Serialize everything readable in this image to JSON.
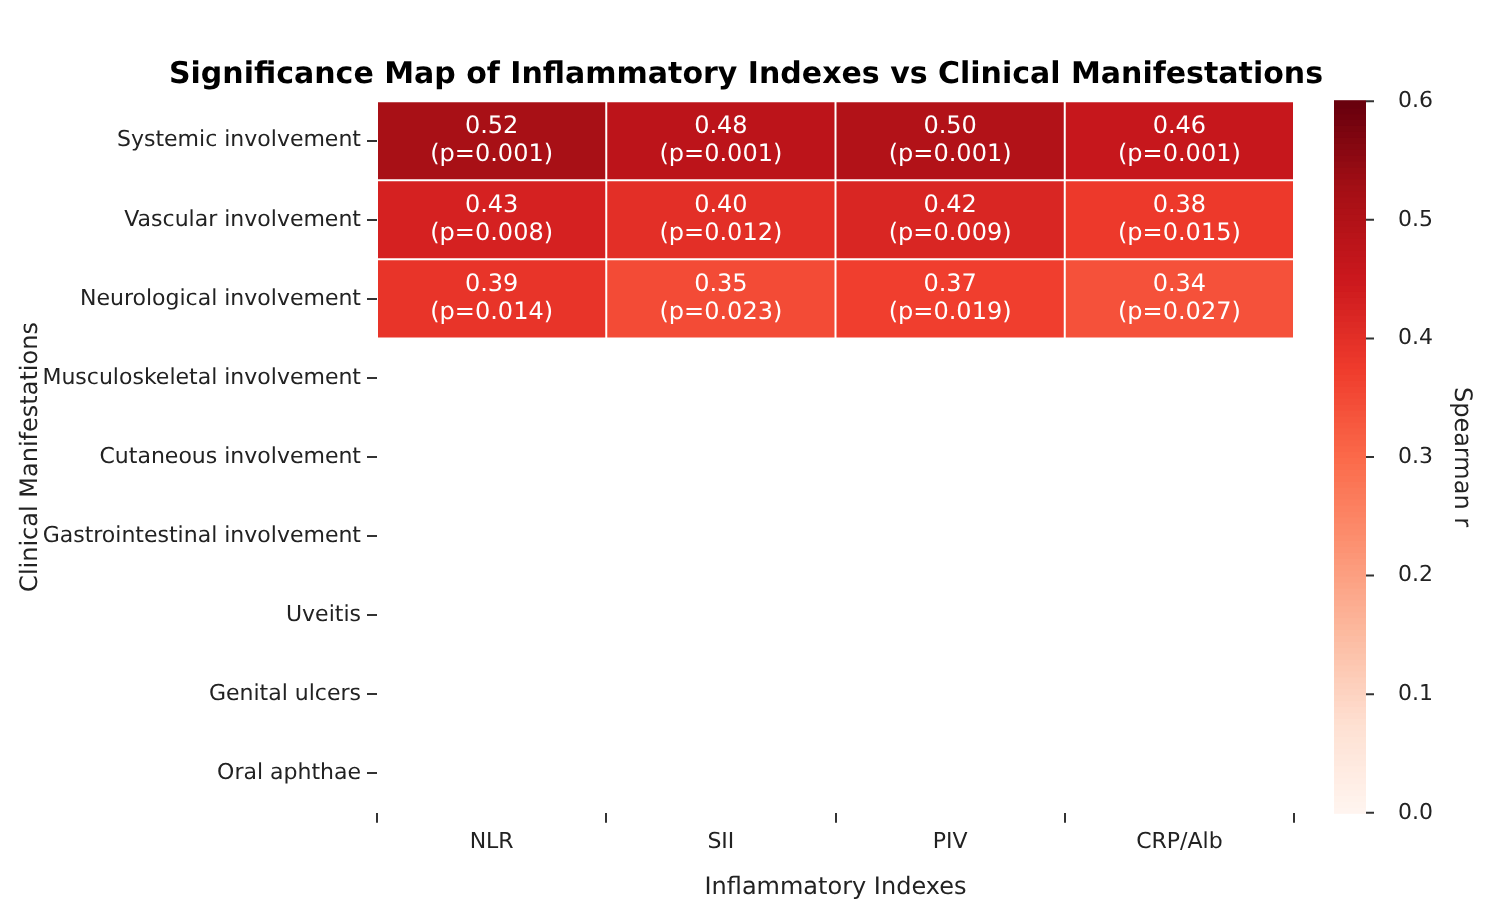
{
  "chart_data": {
    "type": "heatmap",
    "title": "Significance Map of Inflammatory Indexes vs Clinical Manifestations",
    "xlabel": "Inflammatory Indexes",
    "ylabel": "Clinical Manifestations",
    "clabel": "Spearman r",
    "categories": [
      "NLR",
      "SII",
      "PIV",
      "CRP/Alb"
    ],
    "y_categories": [
      "Systemic involvement",
      "Vascular involvement",
      "Neurological involvement",
      "Musculoskeletal involvement",
      "Cutaneous involvement",
      "Gastrointestinal involvement",
      "Uveitis",
      "Genital ulcers",
      "Oral aphthae"
    ],
    "cells": [
      [
        0.52,
        0.48,
        0.5,
        0.46
      ],
      [
        0.43,
        0.4,
        0.42,
        0.38
      ],
      [
        0.39,
        0.35,
        0.37,
        0.34
      ],
      [
        null,
        null,
        null,
        null
      ],
      [
        null,
        null,
        null,
        null
      ],
      [
        null,
        null,
        null,
        null
      ],
      [
        null,
        null,
        null,
        null
      ],
      [
        null,
        null,
        null,
        null
      ],
      [
        null,
        null,
        null,
        null
      ]
    ],
    "cell_labels": [
      [
        "0.52\n(p=0.001)",
        "0.48\n(p=0.001)",
        "0.50\n(p=0.001)",
        "0.46\n(p=0.001)"
      ],
      [
        "0.43\n(p=0.008)",
        "0.40\n(p=0.012)",
        "0.42\n(p=0.009)",
        "0.38\n(p=0.015)"
      ],
      [
        "0.39\n(p=0.014)",
        "0.35\n(p=0.023)",
        "0.37\n(p=0.019)",
        "0.34\n(p=0.027)"
      ],
      [
        null,
        null,
        null,
        null
      ],
      [
        null,
        null,
        null,
        null
      ],
      [
        null,
        null,
        null,
        null
      ],
      [
        null,
        null,
        null,
        null
      ],
      [
        null,
        null,
        null,
        null
      ],
      [
        null,
        null,
        null,
        null
      ]
    ],
    "clim": [
      0,
      0.6
    ],
    "cticks": [
      {
        "value": 0,
        "label": "0.0"
      },
      {
        "value": 0.1,
        "label": "0.1"
      },
      {
        "value": 0.2,
        "label": "0.2"
      },
      {
        "value": 0.3,
        "label": "0.3"
      },
      {
        "value": 0.4,
        "label": "0.4"
      },
      {
        "value": 0.5,
        "label": "0.5"
      },
      {
        "value": 0.6,
        "label": "0.6"
      }
    ]
  }
}
